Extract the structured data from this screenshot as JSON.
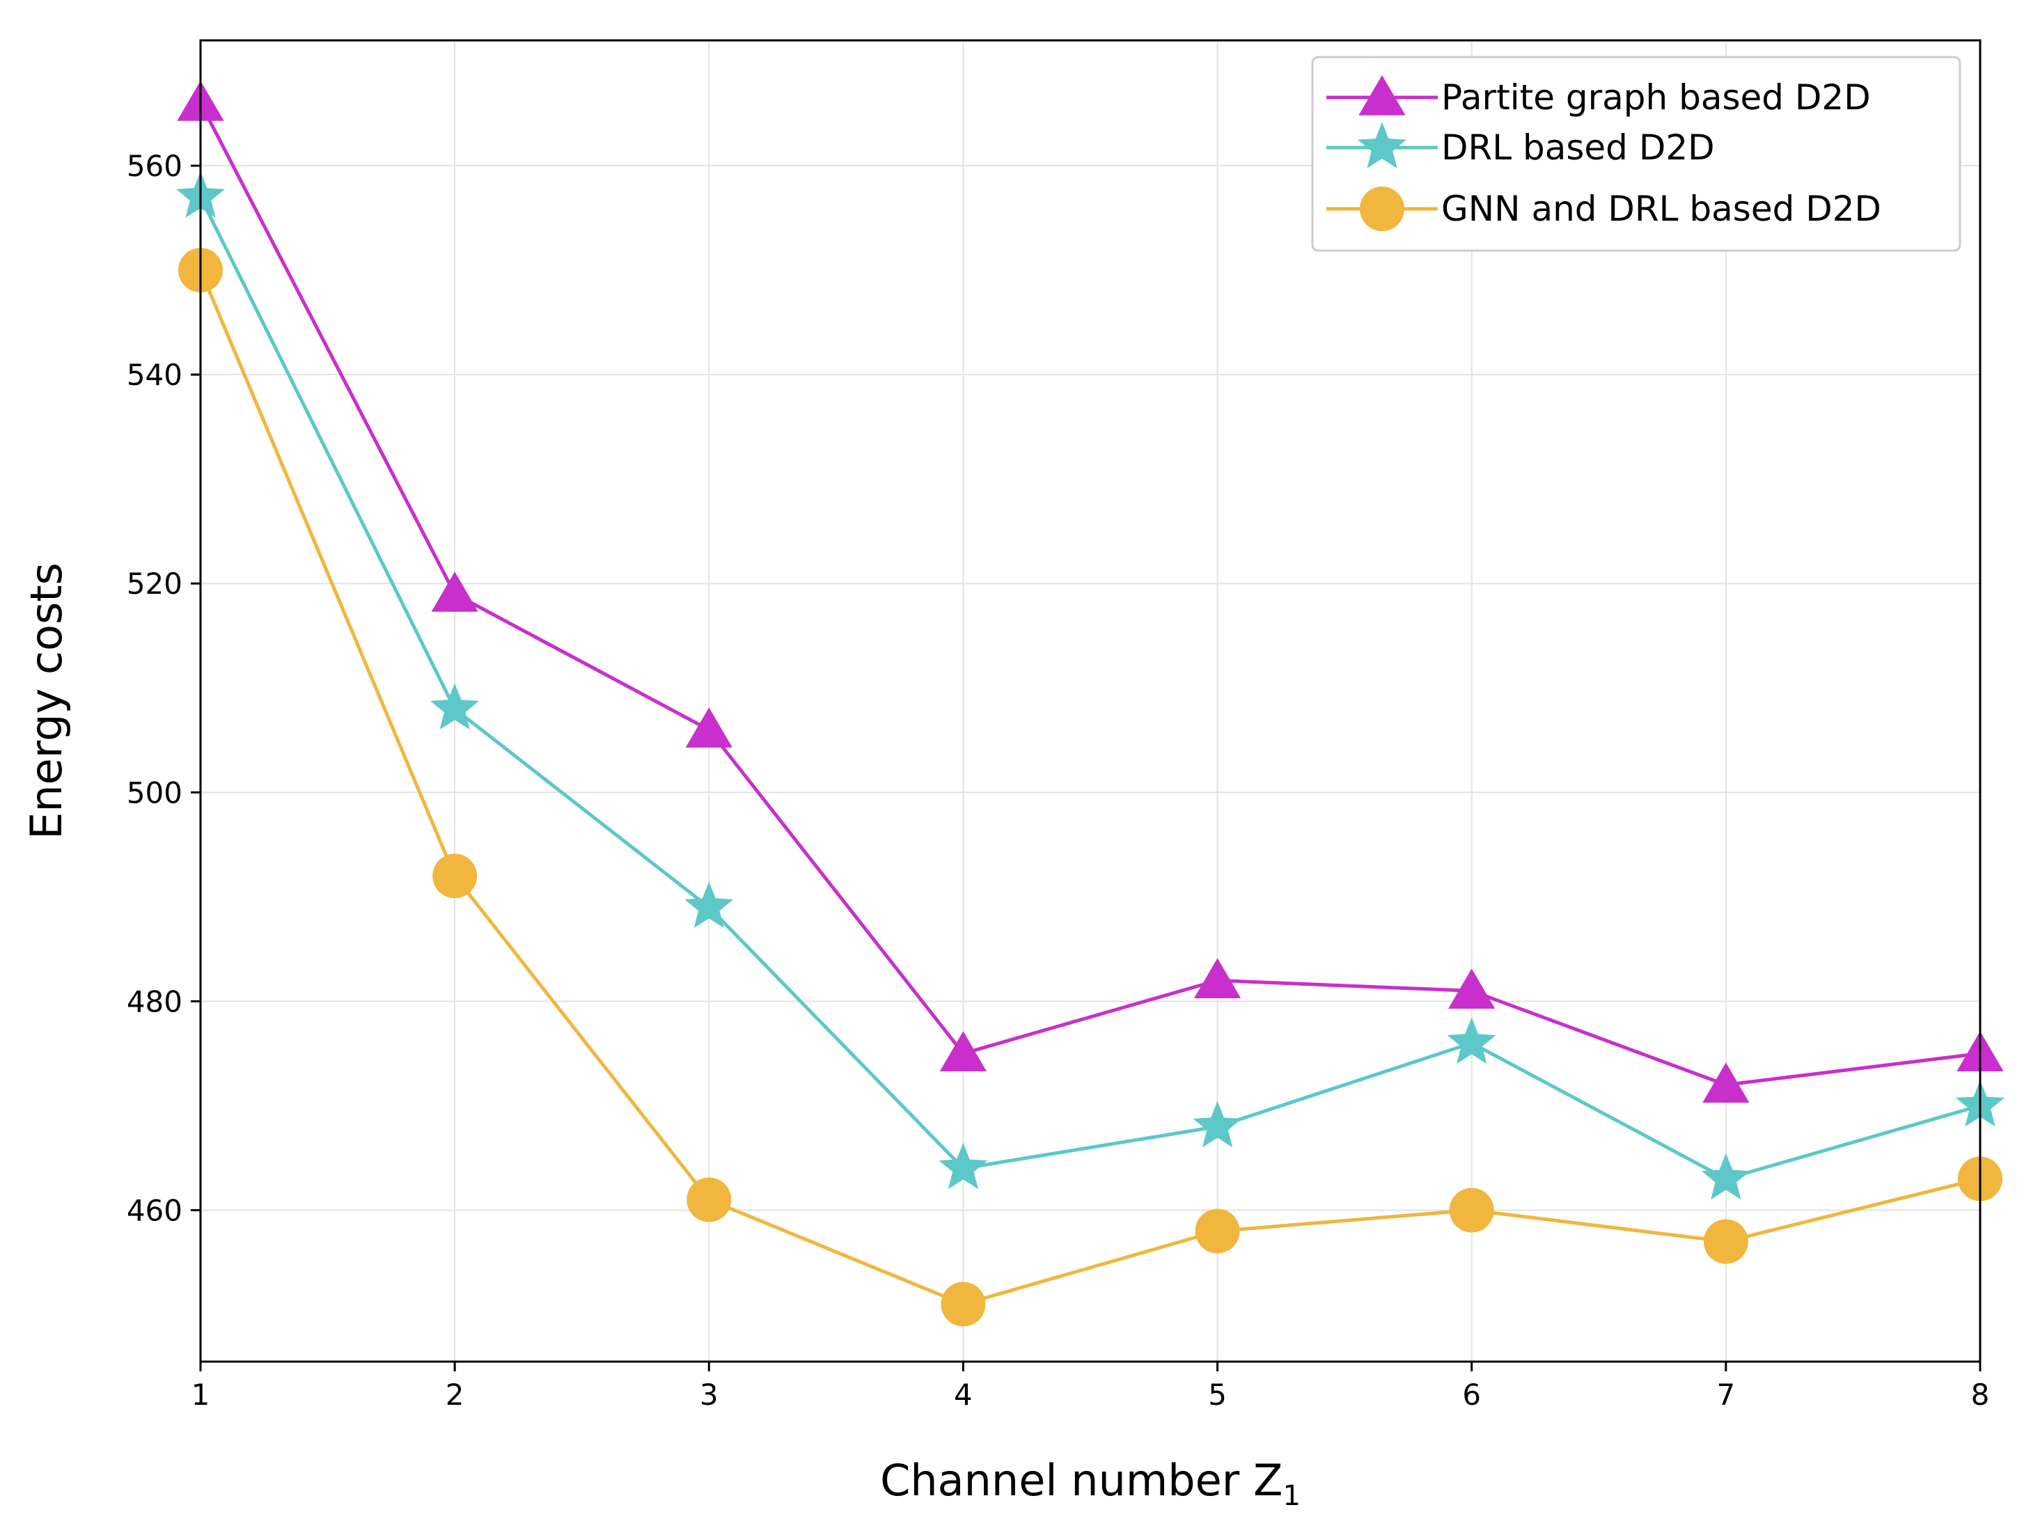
{
  "chart_data": {
    "type": "line",
    "title": "",
    "xlabel": "Channel number Z",
    "xlabel_subscript": "1",
    "ylabel": "Energy costs",
    "x": [
      1,
      2,
      3,
      4,
      5,
      6,
      7,
      8
    ],
    "xlim": [
      1,
      8
    ],
    "ylim": [
      445.5,
      572
    ],
    "yticks": [
      460,
      480,
      500,
      520,
      540,
      560
    ],
    "grid": true,
    "legend_position": "top-right",
    "series": [
      {
        "name": "Partite graph based D2D",
        "marker": "triangle",
        "color": "#c92fcc",
        "values": [
          566,
          519,
          506,
          475,
          482,
          481,
          472,
          475
        ]
      },
      {
        "name": "DRL based D2D",
        "marker": "star",
        "color": "#5cc8c8",
        "values": [
          557,
          508,
          489,
          464,
          468,
          476,
          463,
          470
        ]
      },
      {
        "name": "GNN and DRL based D2D",
        "marker": "circle",
        "color": "#f0b63e",
        "values": [
          550,
          492,
          461,
          451,
          458,
          460,
          457,
          463
        ]
      }
    ]
  }
}
